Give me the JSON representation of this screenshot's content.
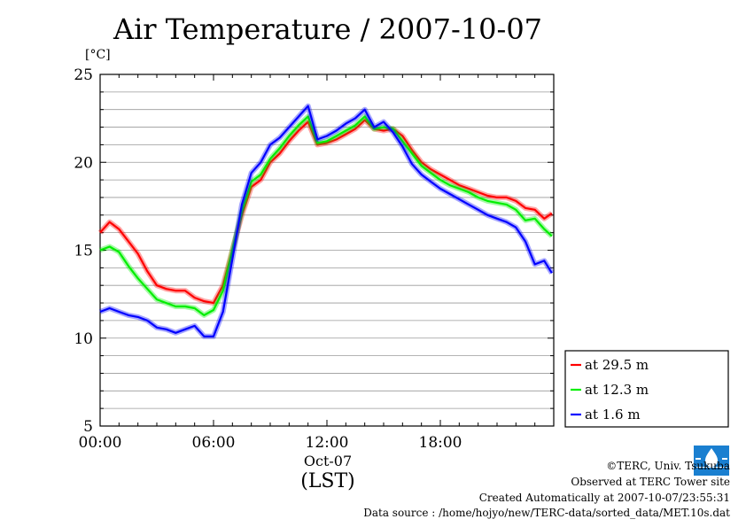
{
  "chart_data": {
    "type": "line",
    "title": "Air Temperature / 2007-10-07",
    "ylabel": "[°C]",
    "xlabel": "(LST)",
    "xdate_label": "Oct-07",
    "ylim": [
      5,
      25
    ],
    "xlim": [
      0,
      24
    ],
    "yticks": [
      "5",
      "10",
      "15",
      "20",
      "25"
    ],
    "xticks": [
      "00:00",
      "06:00",
      "12:00",
      "18:00"
    ],
    "grid": true,
    "legend_position": "right, below plot top",
    "x": [
      0,
      0.5,
      1,
      1.5,
      2,
      2.5,
      3,
      3.5,
      4,
      4.5,
      5,
      5.5,
      6,
      6.5,
      7,
      7.5,
      8,
      8.5,
      9,
      9.5,
      10,
      10.5,
      11,
      11.5,
      12,
      12.5,
      13,
      13.5,
      14,
      14.5,
      15,
      15.5,
      16,
      16.5,
      17,
      17.5,
      18,
      18.5,
      19,
      19.5,
      20,
      20.5,
      21,
      21.5,
      22,
      22.5,
      23,
      23.5,
      23.9
    ],
    "series": [
      {
        "name": "at 29.5 m",
        "color": "#ff0000",
        "values": [
          16.0,
          16.6,
          16.2,
          15.5,
          14.8,
          13.8,
          13.0,
          12.8,
          12.7,
          12.7,
          12.3,
          12.1,
          12.0,
          13.0,
          15.0,
          17.0,
          18.6,
          19.0,
          20.0,
          20.5,
          21.2,
          21.8,
          22.3,
          21.0,
          21.1,
          21.3,
          21.6,
          21.9,
          22.4,
          21.9,
          21.8,
          21.9,
          21.5,
          20.7,
          20.0,
          19.6,
          19.3,
          19.0,
          18.7,
          18.5,
          18.3,
          18.1,
          18.0,
          18.0,
          17.8,
          17.4,
          17.3,
          16.8,
          17.1
        ]
      },
      {
        "name": "at 12.3 m",
        "color": "#00ee00",
        "values": [
          15.0,
          15.2,
          14.9,
          14.1,
          13.4,
          12.8,
          12.2,
          12.0,
          11.8,
          11.8,
          11.7,
          11.3,
          11.6,
          12.7,
          15.0,
          17.2,
          18.9,
          19.3,
          20.2,
          20.8,
          21.5,
          22.1,
          22.6,
          21.1,
          21.2,
          21.5,
          21.8,
          22.1,
          22.6,
          21.9,
          22.0,
          21.9,
          21.2,
          20.5,
          19.8,
          19.4,
          19.0,
          18.7,
          18.5,
          18.3,
          18.0,
          17.8,
          17.7,
          17.6,
          17.3,
          16.7,
          16.8,
          16.2,
          15.8
        ]
      },
      {
        "name": "at 1.6 m",
        "color": "#0000ff",
        "values": [
          11.5,
          11.7,
          11.5,
          11.3,
          11.2,
          11.0,
          10.6,
          10.5,
          10.3,
          10.5,
          10.7,
          10.1,
          10.1,
          11.5,
          14.5,
          17.6,
          19.4,
          20.0,
          21.0,
          21.4,
          22.0,
          22.6,
          23.2,
          21.3,
          21.5,
          21.8,
          22.2,
          22.5,
          23.0,
          22.0,
          22.3,
          21.7,
          20.9,
          19.9,
          19.3,
          18.9,
          18.5,
          18.2,
          17.9,
          17.6,
          17.3,
          17.0,
          16.8,
          16.6,
          16.3,
          15.5,
          14.2,
          14.4,
          13.7
        ]
      }
    ]
  },
  "footer": {
    "copyright": "©TERC, Univ. Tsukuba",
    "site": "Observed at TERC Tower site",
    "created": "Created Automatically at 2007-10-07/23:55:31",
    "source": "Data source : /home/hojyo/new/TERC-data/sorted_data/MET.10s.dat"
  },
  "logo": {
    "name": "terc-logo-icon",
    "text": "TERC",
    "color": "#1a7fd0"
  }
}
